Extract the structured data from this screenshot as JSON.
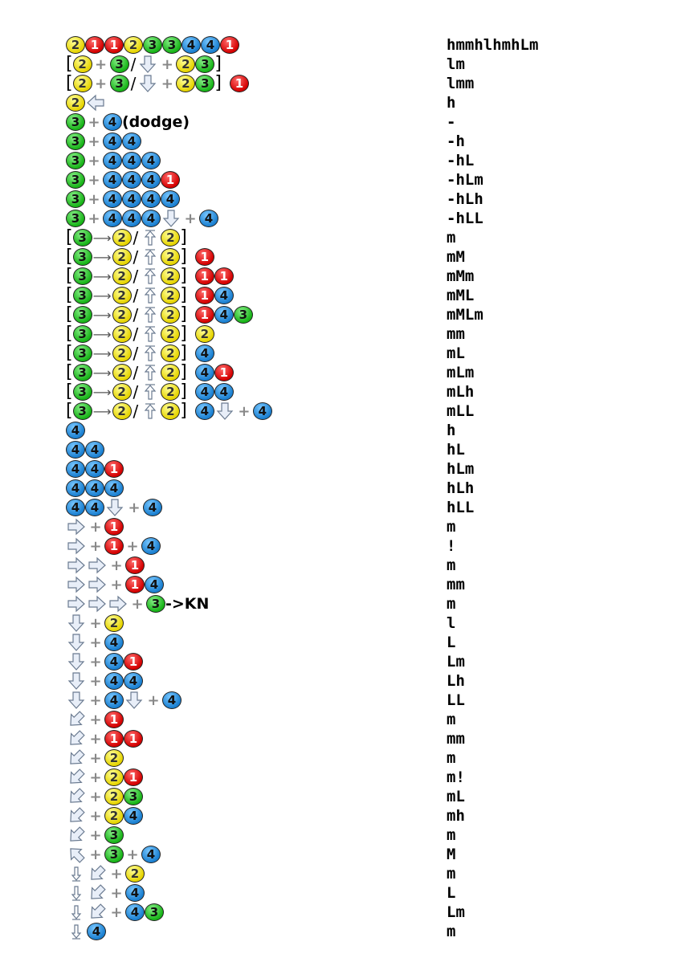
{
  "rows": [
    {
      "input": [
        "b2",
        "b1",
        "b1",
        "b2",
        "b3",
        "b3",
        "b4",
        "b4",
        "b1"
      ],
      "hits": "hmmhlhmhLm"
    },
    {
      "input": [
        "[",
        "b2",
        "+",
        "b3",
        "/",
        "d2",
        "+",
        "b2",
        "b3",
        "]"
      ],
      "hits": "lm"
    },
    {
      "input": [
        "[",
        "b2",
        "+",
        "b3",
        "/",
        "d2",
        "+",
        "b2",
        "b3",
        "]",
        "gap",
        "b1"
      ],
      "hits": "lmm"
    },
    {
      "input": [
        "b2",
        "d4"
      ],
      "hits": "h"
    },
    {
      "input": [
        "b3",
        "+",
        "b4",
        "t:(dodge)"
      ],
      "hits": "-"
    },
    {
      "input": [
        "b3",
        "+",
        "b4",
        "b4"
      ],
      "hits": "-h"
    },
    {
      "input": [
        "b3",
        "+",
        "b4",
        "b4",
        "b4"
      ],
      "hits": "-hL"
    },
    {
      "input": [
        "b3",
        "+",
        "b4",
        "b4",
        "b4",
        "b1"
      ],
      "hits": "-hLm"
    },
    {
      "input": [
        "b3",
        "+",
        "b4",
        "b4",
        "b4",
        "b4"
      ],
      "hits": "-hLh"
    },
    {
      "input": [
        "b3",
        "+",
        "b4",
        "b4",
        "b4",
        "d2",
        "+",
        "b4"
      ],
      "hits": "-hLL"
    },
    {
      "input": [
        "[",
        "b3",
        "ar",
        "b2",
        "/",
        "d8",
        "b2",
        "]"
      ],
      "hits": "m"
    },
    {
      "input": [
        "[",
        "b3",
        "ar",
        "b2",
        "/",
        "d8",
        "b2",
        "]",
        "gap",
        "b1"
      ],
      "hits": "mM"
    },
    {
      "input": [
        "[",
        "b3",
        "ar",
        "b2",
        "/",
        "d8",
        "b2",
        "]",
        "gap",
        "b1",
        "b1"
      ],
      "hits": "mMm"
    },
    {
      "input": [
        "[",
        "b3",
        "ar",
        "b2",
        "/",
        "d8",
        "b2",
        "]",
        "gap",
        "b1",
        "b4"
      ],
      "hits": "mML"
    },
    {
      "input": [
        "[",
        "b3",
        "ar",
        "b2",
        "/",
        "d8",
        "b2",
        "]",
        "gap",
        "b1",
        "b4",
        "b3"
      ],
      "hits": "mMLm"
    },
    {
      "input": [
        "[",
        "b3",
        "ar",
        "b2",
        "/",
        "d8",
        "b2",
        "]",
        "gap",
        "b2"
      ],
      "hits": "mm"
    },
    {
      "input": [
        "[",
        "b3",
        "ar",
        "b2",
        "/",
        "d8",
        "b2",
        "]",
        "gap",
        "b4"
      ],
      "hits": "mL"
    },
    {
      "input": [
        "[",
        "b3",
        "ar",
        "b2",
        "/",
        "d8",
        "b2",
        "]",
        "gap",
        "b4",
        "b1"
      ],
      "hits": "mLm"
    },
    {
      "input": [
        "[",
        "b3",
        "ar",
        "b2",
        "/",
        "d8",
        "b2",
        "]",
        "gap",
        "b4",
        "b4"
      ],
      "hits": "mLh"
    },
    {
      "input": [
        "[",
        "b3",
        "ar",
        "b2",
        "/",
        "d8",
        "b2",
        "]",
        "gap",
        "b4",
        "d2",
        "+",
        "b4"
      ],
      "hits": "mLL"
    },
    {
      "input": [
        "b4"
      ],
      "hits": "h"
    },
    {
      "input": [
        "b4",
        "b4"
      ],
      "hits": "hL"
    },
    {
      "input": [
        "b4",
        "b4",
        "b1"
      ],
      "hits": "hLm"
    },
    {
      "input": [
        "b4",
        "b4",
        "b4"
      ],
      "hits": "hLh"
    },
    {
      "input": [
        "b4",
        "b4",
        "d2",
        "+",
        "b4"
      ],
      "hits": "hLL"
    },
    {
      "input": [
        "d6",
        "+",
        "b1"
      ],
      "hits": "m"
    },
    {
      "input": [
        "d6",
        "+",
        "b1",
        "+",
        "b4"
      ],
      "hits": "!"
    },
    {
      "input": [
        "d6",
        "d6",
        "+",
        "b1"
      ],
      "hits": "m"
    },
    {
      "input": [
        "d6",
        "d6",
        "+",
        "b1",
        "b4"
      ],
      "hits": "mm"
    },
    {
      "input": [
        "d6",
        "d6",
        "d6",
        "+",
        "b3",
        "t:->KN"
      ],
      "hits": "m"
    },
    {
      "input": [
        "d2",
        "+",
        "b2"
      ],
      "hits": "l"
    },
    {
      "input": [
        "d2",
        "+",
        "b4"
      ],
      "hits": "L"
    },
    {
      "input": [
        "d2",
        "+",
        "b4",
        "b1"
      ],
      "hits": "Lm"
    },
    {
      "input": [
        "d2",
        "+",
        "b4",
        "b4"
      ],
      "hits": "Lh"
    },
    {
      "input": [
        "d2",
        "+",
        "b4",
        "d2",
        "+",
        "b4"
      ],
      "hits": "LL"
    },
    {
      "input": [
        "d1",
        "+",
        "b1"
      ],
      "hits": "m"
    },
    {
      "input": [
        "d1",
        "+",
        "b1",
        "b1"
      ],
      "hits": "mm"
    },
    {
      "input": [
        "d1",
        "+",
        "b2"
      ],
      "hits": "m"
    },
    {
      "input": [
        "d1",
        "+",
        "b2",
        "b1"
      ],
      "hits": "m!"
    },
    {
      "input": [
        "d1",
        "+",
        "b2",
        "b3"
      ],
      "hits": "mL"
    },
    {
      "input": [
        "d1",
        "+",
        "b2",
        "b4"
      ],
      "hits": "mh"
    },
    {
      "input": [
        "d1",
        "+",
        "b3"
      ],
      "hits": "m"
    },
    {
      "input": [
        "d7",
        "+",
        "b3",
        "+",
        "b4"
      ],
      "hits": "M"
    },
    {
      "input": [
        "dd",
        "d1",
        "+",
        "b2"
      ],
      "hits": "m"
    },
    {
      "input": [
        "dd",
        "d1",
        "+",
        "b4"
      ],
      "hits": "L"
    },
    {
      "input": [
        "dd",
        "d1",
        "+",
        "b4",
        "b3"
      ],
      "hits": "Lm"
    },
    {
      "input": [
        "dd",
        "b4"
      ],
      "hits": "m"
    }
  ],
  "icons": {
    "b1": {
      "name": "button-1-icon",
      "glyph": "1",
      "color": "#d40000"
    },
    "b2": {
      "name": "button-2-icon",
      "glyph": "2",
      "color": "#e6d400"
    },
    "b3": {
      "name": "button-3-icon",
      "glyph": "3",
      "color": "#17b317"
    },
    "b4": {
      "name": "button-4-icon",
      "glyph": "4",
      "color": "#1a7fd0"
    },
    "d1": {
      "name": "down-back-arrow-icon"
    },
    "d2": {
      "name": "down-arrow-icon"
    },
    "d4": {
      "name": "back-arrow-icon"
    },
    "d6": {
      "name": "forward-arrow-icon"
    },
    "d7": {
      "name": "up-back-arrow-icon"
    },
    "d8": {
      "name": "up-arrow-icon"
    },
    "dd": {
      "name": "down-hold-arrow-icon"
    },
    "ar": {
      "name": "transition-arrow-icon"
    }
  }
}
